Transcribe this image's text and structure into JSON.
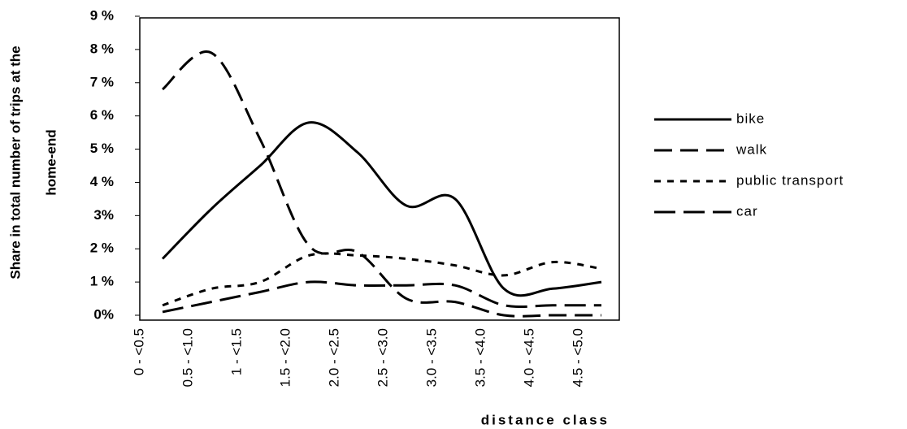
{
  "chart_data": {
    "type": "line",
    "y_label": [
      "Share in total number of trips at the",
      "home-end"
    ],
    "x_label": "distance class",
    "categories": [
      "0 - <0.5",
      "0.5 - <1.0",
      "1 - <1.5",
      "1.5 - <2.0",
      "2.0 - <2.5",
      "2.5 - <3.0",
      "3.0 - <3.5",
      "3.5 - <4.0",
      "4.0 - <4.5",
      "4.5 - <5.0"
    ],
    "series": [
      {
        "name": "bike",
        "color": "#000000",
        "style": "solid",
        "values": [
          1.7,
          3.2,
          4.5,
          5.8,
          4.9,
          3.3,
          3.5,
          0.8,
          0.8,
          1.0
        ]
      },
      {
        "name": "walk",
        "color": "#000000",
        "style": "sparse-dash",
        "values": [
          6.8,
          7.9,
          5.3,
          2.1,
          1.9,
          0.5,
          0.4,
          0.0,
          0.0,
          0.0
        ]
      },
      {
        "name": "public transport",
        "color": "#000000",
        "style": "dot",
        "values": [
          0.3,
          0.8,
          1.0,
          1.8,
          1.8,
          1.7,
          1.5,
          1.2,
          1.6,
          1.4
        ]
      },
      {
        "name": "car",
        "color": "#000000",
        "style": "long-dash",
        "values": [
          0.1,
          0.4,
          0.7,
          1.0,
          0.9,
          0.9,
          0.9,
          0.3,
          0.3,
          0.3
        ]
      }
    ],
    "ylim": [
      0,
      9
    ],
    "yticks": [
      {
        "value": 0,
        "label": "0%"
      },
      {
        "value": 1,
        "label": "1 %"
      },
      {
        "value": 2,
        "label": "2 %"
      },
      {
        "value": 3,
        "label": "3%"
      },
      {
        "value": 4,
        "label": "4 %"
      },
      {
        "value": 5,
        "label": "5 %"
      },
      {
        "value": 6,
        "label": "6 %"
      },
      {
        "value": 7,
        "label": "7 %"
      },
      {
        "value": 8,
        "label": "8 %"
      },
      {
        "value": 9,
        "label": "9 %"
      }
    ],
    "legend": "right"
  }
}
